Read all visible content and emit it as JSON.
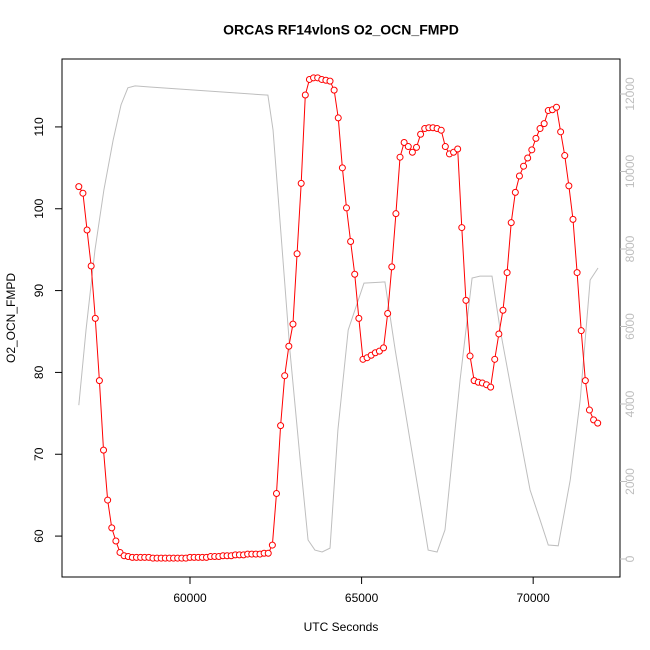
{
  "chart_data": {
    "type": "line",
    "title": "ORCAS RF14vlonS O2_OCN_FMPD",
    "x_label": "UTC Seconds",
    "y_label": "O2_OCN_FMPD",
    "xlim": [
      56270,
      72530
    ],
    "xticks": [
      60000,
      65000,
      70000
    ],
    "ylim": [
      55.0,
      118.3
    ],
    "yticks": [
      60,
      70,
      80,
      90,
      100,
      110
    ],
    "y2lim": [
      -465,
      12903
    ],
    "y2ticks": [
      0,
      2000,
      4000,
      6000,
      8000,
      10000,
      12000
    ],
    "grid": false,
    "series": [
      {
        "color": "#ff0000",
        "markers": true,
        "x": [
          56760,
          56880,
          57000,
          57120,
          57240,
          57360,
          57480,
          57600,
          57720,
          57840,
          57960,
          58080,
          58200,
          58320,
          58440,
          58560,
          58680,
          58800,
          58920,
          59040,
          59160,
          59280,
          59400,
          59520,
          59640,
          59760,
          59880,
          60000,
          60120,
          60240,
          60360,
          60480,
          60600,
          60720,
          60840,
          60960,
          61080,
          61200,
          61320,
          61440,
          61560,
          61680,
          61800,
          61920,
          62040,
          62160,
          62280,
          62400,
          62520,
          62640,
          62760,
          62880,
          63000,
          63120,
          63240,
          63360,
          63480,
          63600,
          63720,
          63840,
          63960,
          64080,
          64200,
          64320,
          64440,
          64560,
          64680,
          64800,
          64920,
          65040,
          65160,
          65280,
          65400,
          65520,
          65640,
          65760,
          65880,
          66000,
          66120,
          66240,
          66360,
          66480,
          66600,
          66720,
          66840,
          66960,
          67080,
          67200,
          67320,
          67440,
          67560,
          67680,
          67800,
          67920,
          68040,
          68160,
          68280,
          68400,
          68520,
          68640,
          68760,
          68880,
          69000,
          69120,
          69240,
          69360,
          69480,
          69600,
          69720,
          69840,
          69960,
          70080,
          70200,
          70320,
          70440,
          70560,
          70680,
          70800,
          70920,
          71040,
          71160,
          71280,
          71400,
          71520,
          71640,
          71760,
          71880
        ],
        "values": [
          102.7,
          101.9,
          97.4,
          93.0,
          86.6,
          79.0,
          70.5,
          64.4,
          61.0,
          59.4,
          58.0,
          57.6,
          57.5,
          57.4,
          57.4,
          57.4,
          57.4,
          57.4,
          57.3,
          57.3,
          57.3,
          57.3,
          57.3,
          57.3,
          57.3,
          57.3,
          57.3,
          57.4,
          57.4,
          57.4,
          57.4,
          57.4,
          57.5,
          57.5,
          57.5,
          57.6,
          57.6,
          57.6,
          57.7,
          57.7,
          57.7,
          57.8,
          57.8,
          57.8,
          57.8,
          57.9,
          57.9,
          58.9,
          65.2,
          73.5,
          79.6,
          83.2,
          85.9,
          94.5,
          103.1,
          113.9,
          115.8,
          116.0,
          116.0,
          115.8,
          115.7,
          115.6,
          114.5,
          111.1,
          105.0,
          100.1,
          96.0,
          92.0,
          86.6,
          81.6,
          81.8,
          82.1,
          82.4,
          82.6,
          83.0,
          87.2,
          92.9,
          99.4,
          106.3,
          108.1,
          107.6,
          106.9,
          107.5,
          109.1,
          109.8,
          109.9,
          109.9,
          109.8,
          109.6,
          107.6,
          106.7,
          106.9,
          107.3,
          97.7,
          88.8,
          82.0,
          79.0,
          78.8,
          78.7,
          78.5,
          78.2,
          81.6,
          84.7,
          87.6,
          92.2,
          98.3,
          102.0,
          104.0,
          105.2,
          106.2,
          107.2,
          108.6,
          109.8,
          110.4,
          112.0,
          112.1,
          112.4,
          109.4,
          106.5,
          102.8,
          98.7,
          92.2,
          85.1,
          79.0,
          75.4,
          74.2,
          73.8
        ]
      },
      {
        "color": "#bebebe",
        "axis": "y2",
        "markers": false,
        "x": [
          56760,
          56970,
          57230,
          57490,
          57760,
          57990,
          58190,
          58400,
          58830,
          62270,
          62420,
          62620,
          62910,
          63210,
          63440,
          63640,
          63850,
          64080,
          64310,
          64610,
          65070,
          65680,
          65980,
          66410,
          66700,
          66940,
          67200,
          67430,
          67870,
          68220,
          68450,
          68800,
          69040,
          69470,
          69910,
          70200,
          70440,
          70730,
          71080,
          71370,
          71660,
          71890
        ],
        "values": [
          3970,
          5910,
          7970,
          9520,
          10810,
          11720,
          12160,
          12210,
          12180,
          11970,
          11070,
          8750,
          5390,
          2560,
          490,
          230,
          180,
          280,
          3330,
          5910,
          7120,
          7150,
          5390,
          3070,
          1520,
          230,
          180,
          750,
          4620,
          7250,
          7300,
          7300,
          5910,
          3850,
          1780,
          1010,
          360,
          340,
          2040,
          4100,
          7200,
          7510
        ]
      }
    ]
  }
}
